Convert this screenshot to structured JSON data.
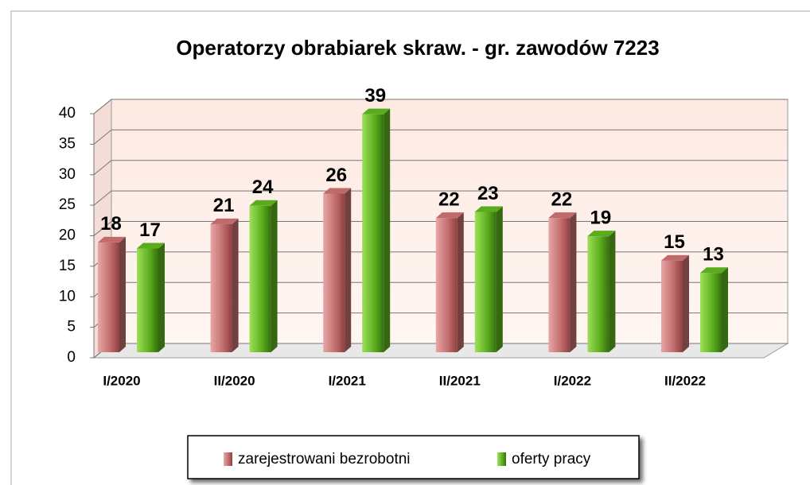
{
  "chart_data": {
    "type": "bar3d",
    "title": "Operatorzy obrabiarek skraw. - gr. zawodów 7223",
    "categories": [
      "I/2020",
      "II/2020",
      "I/2021",
      "II/2021",
      "I/2022",
      "II/2022"
    ],
    "series": [
      {
        "name": "zarejestrowani bezrobotni",
        "color": "#c06a6a",
        "values": [
          18,
          21,
          26,
          22,
          22,
          15
        ]
      },
      {
        "name": "oferty pracy",
        "color": "#5aac1c",
        "values": [
          17,
          24,
          39,
          23,
          19,
          13
        ]
      }
    ],
    "ylim": [
      0,
      40
    ],
    "yticks": [
      0,
      5,
      10,
      15,
      20,
      25,
      30,
      35,
      40
    ],
    "grid": true,
    "legend": "bottom"
  }
}
